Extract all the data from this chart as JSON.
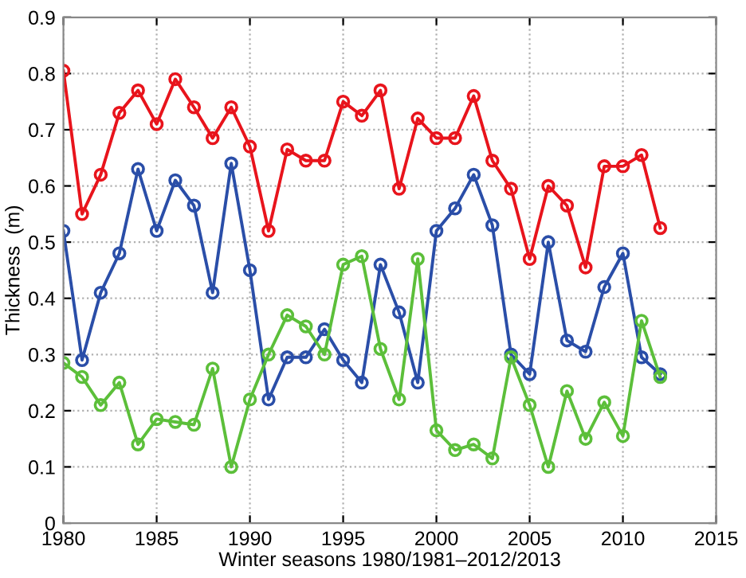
{
  "chart_data": {
    "type": "line",
    "xlabel": "Winter seasons 1980/1981–2012/2013",
    "ylabel": "Thickness  (m)",
    "x": [
      1980,
      1981,
      1982,
      1983,
      1984,
      1985,
      1986,
      1987,
      1988,
      1989,
      1990,
      1991,
      1992,
      1993,
      1994,
      1995,
      1996,
      1997,
      1998,
      1999,
      2000,
      2001,
      2002,
      2003,
      2004,
      2005,
      2006,
      2007,
      2008,
      2009,
      2010,
      2011,
      2012
    ],
    "series": [
      {
        "color": "#e8141c",
        "values": [
          0.805,
          0.55,
          0.62,
          0.73,
          0.77,
          0.71,
          0.79,
          0.74,
          0.685,
          0.74,
          0.67,
          0.52,
          0.665,
          0.645,
          0.645,
          0.75,
          0.725,
          0.77,
          0.595,
          0.72,
          0.685,
          0.685,
          0.76,
          0.645,
          0.595,
          0.47,
          0.6,
          0.565,
          0.455,
          0.635,
          0.635,
          0.655,
          0.525
        ]
      },
      {
        "color": "#2a4ea8",
        "values": [
          0.52,
          0.29,
          0.41,
          0.48,
          0.63,
          0.52,
          0.61,
          0.565,
          0.41,
          0.64,
          0.45,
          0.22,
          0.295,
          0.295,
          0.345,
          0.29,
          0.25,
          0.46,
          0.375,
          0.25,
          0.52,
          0.56,
          0.62,
          0.53,
          0.3,
          0.265,
          0.5,
          0.325,
          0.305,
          0.42,
          0.48,
          0.295,
          0.265
        ]
      },
      {
        "color": "#5cbf3a",
        "values": [
          0.285,
          0.26,
          0.21,
          0.25,
          0.14,
          0.185,
          0.18,
          0.175,
          0.275,
          0.1,
          0.22,
          0.3,
          0.37,
          0.35,
          0.3,
          0.46,
          0.475,
          0.31,
          0.22,
          0.47,
          0.165,
          0.13,
          0.14,
          0.115,
          0.295,
          0.21,
          0.1,
          0.235,
          0.15,
          0.215,
          0.155,
          0.36,
          0.26
        ]
      }
    ],
    "xlim": [
      1980,
      2015
    ],
    "xticks": [
      1980,
      1985,
      1990,
      1995,
      2000,
      2005,
      2010,
      2015
    ],
    "ylim": [
      0,
      0.9
    ],
    "yticks": [
      0,
      0.1,
      0.2,
      0.3,
      0.4,
      0.5,
      0.6,
      0.7,
      0.8,
      0.9
    ],
    "grid": true,
    "marker": "circle",
    "line_style": "solid"
  }
}
